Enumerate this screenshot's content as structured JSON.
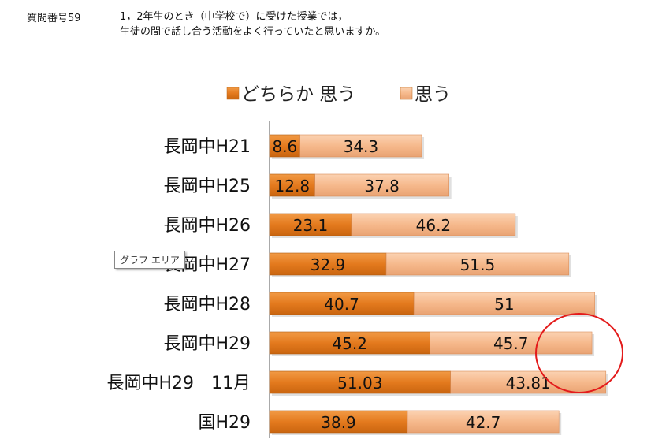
{
  "question": {
    "number_label": "質問番号59",
    "line1": "1，2年生のとき（中学校で）に受けた授業では，",
    "line2": "生徒の間で話し合う活動をよく行っていたと思いますか。"
  },
  "tooltip": {
    "label": "グラフ エリア"
  },
  "colors": {
    "series1": "#e47a1e",
    "series2": "#f6b98c",
    "circle": "#e31b1b",
    "axis": "#555555"
  },
  "chart_data": {
    "type": "bar",
    "orientation": "horizontal",
    "stacked": true,
    "categories": [
      "長岡中H21",
      "長岡中H25",
      "長岡中H26",
      "長岡中H27",
      "長岡中H28",
      "長岡中H29",
      "長岡中H29　11月",
      "国H29"
    ],
    "series": [
      {
        "name": "どちらか 思う",
        "values": [
          8.6,
          12.8,
          23.1,
          32.9,
          40.7,
          45.2,
          51.03,
          38.9
        ]
      },
      {
        "name": "思う",
        "values": [
          34.3,
          37.8,
          46.2,
          51.5,
          51,
          45.7,
          43.81,
          42.7
        ]
      }
    ],
    "xlim": [
      0,
      100
    ],
    "legend_position": "top",
    "grid": false,
    "annotations": [
      "red circle around the right end of the 長岡中H29 and 長岡中H29 11月 bars"
    ]
  }
}
